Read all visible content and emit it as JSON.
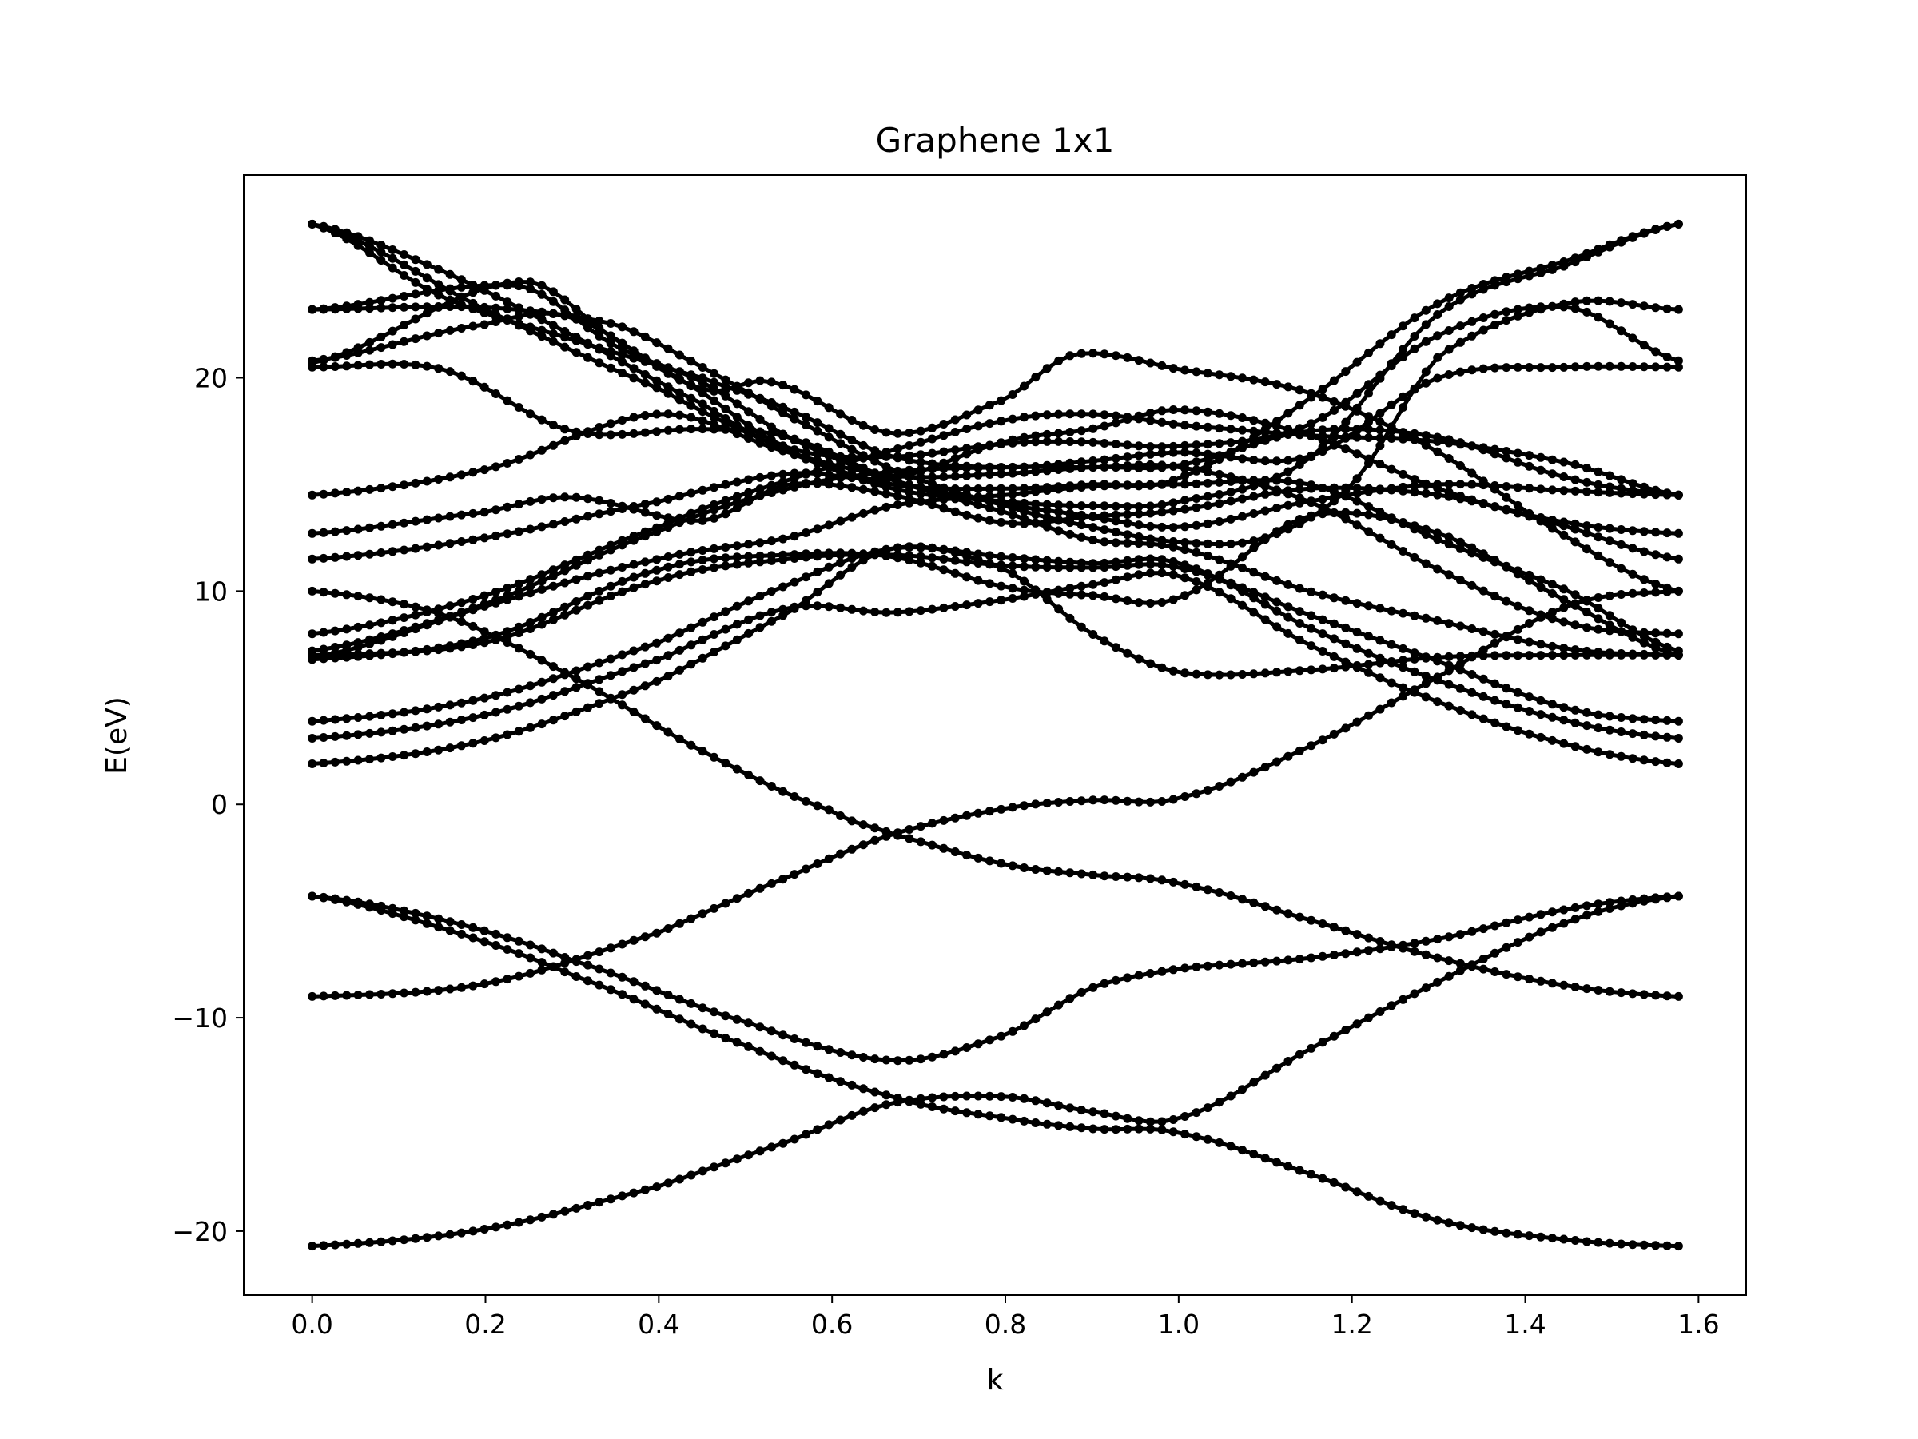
{
  "chart_data": {
    "type": "line",
    "title": "Graphene 1x1",
    "xlabel": "k",
    "ylabel": "E(eV)",
    "xlim": [
      -0.079,
      1.655
    ],
    "ylim": [
      -23.0,
      29.5
    ],
    "x_ticks": [
      {
        "value": 0.0,
        "label": "0.0"
      },
      {
        "value": 0.2,
        "label": "0.2"
      },
      {
        "value": 0.4,
        "label": "0.4"
      },
      {
        "value": 0.6,
        "label": "0.6"
      },
      {
        "value": 0.8,
        "label": "0.8"
      },
      {
        "value": 1.0,
        "label": "1.0"
      },
      {
        "value": 1.2,
        "label": "1.2"
      },
      {
        "value": 1.4,
        "label": "1.4"
      },
      {
        "value": 1.6,
        "label": "1.6"
      }
    ],
    "y_ticks": [
      {
        "value": -20,
        "label": "−20"
      },
      {
        "value": -10,
        "label": "−10"
      },
      {
        "value": 0,
        "label": "0"
      },
      {
        "value": 10,
        "label": "10"
      },
      {
        "value": 20,
        "label": "20"
      }
    ],
    "grid": false,
    "marker": "dot",
    "series_color": "#000000",
    "series": [
      {
        "x": [
          0.0,
          0.2,
          0.4,
          0.55,
          0.67,
          0.8,
          0.9,
          1.0,
          1.15,
          1.3,
          1.45,
          1.577
        ],
        "values": [
          -20.7,
          -19.9,
          -17.9,
          -15.8,
          -14.0,
          -13.7,
          -14.4,
          -14.7,
          -11.5,
          -8.3,
          -5.5,
          -4.3
        ]
      },
      {
        "x": [
          0.0,
          0.15,
          0.3,
          0.5,
          0.67,
          0.8,
          0.9,
          1.0,
          1.15,
          1.3,
          1.45,
          1.577
        ],
        "values": [
          -4.3,
          -5.4,
          -7.3,
          -10.2,
          -12.0,
          -10.8,
          -8.6,
          -7.7,
          -7.2,
          -6.3,
          -4.9,
          -4.3
        ]
      },
      {
        "x": [
          0.0,
          0.15,
          0.3,
          0.5,
          0.67,
          0.8,
          0.9,
          1.0,
          1.15,
          1.3,
          1.45,
          1.577
        ],
        "values": [
          -4.3,
          -5.8,
          -8.0,
          -11.3,
          -13.7,
          -14.7,
          -15.2,
          -15.4,
          -17.3,
          -19.5,
          -20.4,
          -20.7
        ]
      },
      {
        "x": [
          0.0,
          0.2,
          0.4,
          0.55,
          0.67,
          0.8,
          0.9,
          1.0,
          1.15,
          1.3,
          1.45,
          1.577
        ],
        "values": [
          -9.0,
          -8.4,
          -6.0,
          -3.4,
          -1.4,
          -0.2,
          0.2,
          0.3,
          2.7,
          6.0,
          9.3,
          10.0
        ]
      },
      {
        "x": [
          0.0,
          0.15,
          0.3,
          0.45,
          0.6,
          0.67,
          0.8,
          0.9,
          1.0,
          1.15,
          1.3,
          1.45,
          1.577
        ],
        "values": [
          10.0,
          8.9,
          6.0,
          2.5,
          -0.3,
          -1.4,
          -2.8,
          -3.3,
          -3.7,
          -5.4,
          -7.2,
          -8.5,
          -9.0
        ]
      },
      {
        "x": [
          0.0,
          0.2,
          0.4,
          0.55,
          0.67,
          0.8,
          0.9,
          1.0,
          1.15,
          1.3,
          1.45,
          1.577
        ],
        "values": [
          1.9,
          3.0,
          5.8,
          9.0,
          12.0,
          11.0,
          8.0,
          6.2,
          6.3,
          6.9,
          7.0,
          7.0
        ]
      },
      {
        "x": [
          0.0,
          0.2,
          0.4,
          0.55,
          0.67,
          0.8,
          0.9,
          1.0,
          1.15,
          1.3,
          1.45,
          1.577
        ],
        "values": [
          3.1,
          4.2,
          6.8,
          9.2,
          9.0,
          9.6,
          10.3,
          10.7,
          7.5,
          4.8,
          2.8,
          1.9
        ]
      },
      {
        "x": [
          0.0,
          0.2,
          0.4,
          0.55,
          0.67,
          0.8,
          0.9,
          1.0,
          1.15,
          1.3,
          1.45,
          1.577
        ],
        "values": [
          3.9,
          5.0,
          7.6,
          10.3,
          12.0,
          11.6,
          11.3,
          11.3,
          8.3,
          5.8,
          3.9,
          3.1
        ]
      },
      {
        "x": [
          0.0,
          0.2,
          0.4,
          0.55,
          0.67,
          0.8,
          0.9,
          1.0,
          1.15,
          1.3,
          1.45,
          1.577
        ],
        "values": [
          7.0,
          7.6,
          10.5,
          11.5,
          11.7,
          11.2,
          11.1,
          11.1,
          8.9,
          6.7,
          4.5,
          3.9
        ]
      },
      {
        "x": [
          0.0,
          0.2,
          0.4,
          0.55,
          0.67,
          0.8,
          0.9,
          1.0,
          1.15,
          1.3,
          1.45,
          1.577
        ],
        "values": [
          6.8,
          7.8,
          11.0,
          11.7,
          11.6,
          10.2,
          9.8,
          9.7,
          13.5,
          12.7,
          9.5,
          7.0
        ]
      },
      {
        "x": [
          0.0,
          0.2,
          0.4,
          0.55,
          0.67,
          0.8,
          0.9,
          1.0,
          1.15,
          1.3,
          1.45,
          1.577
        ],
        "values": [
          6.9,
          9.3,
          11.5,
          12.5,
          14.0,
          14.5,
          14.9,
          15.0,
          15.0,
          12.4,
          10.0,
          7.2
        ]
      },
      {
        "x": [
          0.0,
          0.2,
          0.4,
          0.55,
          0.67,
          0.8,
          0.9,
          1.0,
          1.15,
          1.3,
          1.45,
          1.577
        ],
        "values": [
          7.2,
          9.4,
          12.8,
          14.8,
          15.6,
          15.8,
          15.8,
          15.8,
          14.2,
          11.0,
          8.5,
          8.0
        ]
      },
      {
        "x": [
          0.0,
          0.2,
          0.4,
          0.55,
          0.67,
          0.8,
          0.9,
          1.0,
          1.15,
          1.3,
          1.45,
          1.577
        ],
        "values": [
          8.0,
          9.8,
          13.0,
          15.2,
          16.6,
          18.0,
          18.3,
          17.8,
          17.3,
          17.0,
          16.0,
          14.5
        ]
      },
      {
        "x": [
          0.0,
          0.2,
          0.4,
          0.55,
          0.67,
          0.8,
          0.9,
          1.0,
          1.15,
          1.3,
          1.45,
          1.577
        ],
        "values": [
          11.5,
          12.5,
          14.2,
          15.5,
          15.3,
          17.0,
          17.6,
          18.5,
          17.3,
          14.8,
          13.0,
          11.5
        ]
      },
      {
        "x": [
          0.0,
          0.2,
          0.3,
          0.45,
          0.55,
          0.67,
          0.8,
          0.9,
          1.0,
          1.15,
          1.3,
          1.45,
          1.577
        ],
        "values": [
          12.7,
          13.7,
          14.4,
          13.3,
          15.0,
          14.5,
          13.2,
          13.5,
          13.8,
          14.8,
          14.5,
          13.2,
          12.7
        ]
      },
      {
        "x": [
          0.0,
          0.2,
          0.4,
          0.55,
          0.67,
          0.8,
          0.9,
          1.0,
          1.15,
          1.3,
          1.45,
          1.577
        ],
        "values": [
          14.5,
          15.7,
          18.3,
          16.5,
          15.4,
          15.5,
          15.8,
          15.9,
          17.5,
          17.2,
          15.3,
          14.5
        ]
      },
      {
        "x": [
          0.0,
          0.15,
          0.3,
          0.45,
          0.55,
          0.67,
          0.8,
          0.9,
          1.0,
          1.15,
          1.3,
          1.45,
          1.577
        ],
        "values": [
          20.5,
          20.4,
          17.5,
          17.6,
          17.2,
          15.2,
          13.7,
          12.4,
          12.0,
          10.0,
          8.6,
          7.3,
          7.0
        ]
      },
      {
        "x": [
          0.0,
          0.2,
          0.3,
          0.45,
          0.53,
          0.67,
          0.8,
          0.88,
          1.0,
          1.15,
          1.3,
          1.45,
          1.577
        ],
        "values": [
          20.8,
          22.5,
          22.8,
          19.5,
          19.8,
          17.4,
          19.0,
          21.1,
          20.4,
          19.3,
          16.5,
          12.5,
          10.0
        ]
      },
      {
        "x": [
          0.0,
          0.24,
          0.35,
          0.45,
          0.55,
          0.67,
          0.8,
          0.88,
          1.0,
          1.15,
          1.3,
          1.45,
          1.577
        ],
        "values": [
          20.7,
          24.5,
          21.8,
          19.3,
          16.7,
          16.3,
          16.9,
          17.0,
          16.8,
          17.8,
          22.0,
          23.3,
          20.8
        ]
      },
      {
        "x": [
          0.0,
          0.24,
          0.35,
          0.45,
          0.55,
          0.67,
          0.8,
          0.88,
          1.0,
          1.15,
          1.3,
          1.45,
          1.577
        ],
        "values": [
          23.2,
          24.3,
          21.5,
          19.8,
          17.2,
          15.2,
          14.1,
          13.6,
          13.0,
          14.2,
          15.0,
          14.7,
          14.5
        ]
      },
      {
        "x": [
          0.0,
          0.15,
          0.3,
          0.45,
          0.55,
          0.67,
          0.8,
          0.9,
          1.0,
          1.15,
          1.3,
          1.45,
          1.577
        ],
        "values": [
          27.2,
          23.8,
          21.8,
          20.0,
          18.5,
          16.3,
          15.8,
          16.1,
          16.5,
          16.3,
          20.0,
          20.5,
          20.5
        ]
      },
      {
        "x": [
          0.0,
          0.15,
          0.3,
          0.45,
          0.55,
          0.67,
          0.8,
          0.9,
          1.0,
          1.15,
          1.3,
          1.45,
          1.577
        ],
        "values": [
          27.2,
          25.0,
          22.0,
          18.8,
          16.5,
          15.0,
          14.8,
          15.0,
          15.3,
          19.0,
          23.5,
          25.5,
          27.2
        ]
      },
      {
        "x": [
          0.0,
          0.2,
          0.4,
          0.55,
          0.67,
          0.8,
          0.9,
          1.0,
          1.15,
          1.3,
          1.45,
          1.577
        ],
        "values": [
          27.2,
          23.2,
          19.5,
          16.6,
          14.8,
          14.2,
          14.0,
          14.2,
          16.2,
          23.0,
          25.3,
          27.2
        ]
      },
      {
        "x": [
          0.0,
          0.2,
          0.35,
          0.45,
          0.55,
          0.67,
          0.8,
          0.9,
          1.0,
          1.1,
          1.2,
          1.3,
          1.45,
          1.577
        ],
        "values": [
          23.2,
          23.3,
          22.5,
          20.5,
          18.2,
          15.7,
          14.0,
          13.0,
          12.3,
          12.5,
          15.0,
          21.0,
          23.5,
          23.2
        ]
      }
    ]
  }
}
